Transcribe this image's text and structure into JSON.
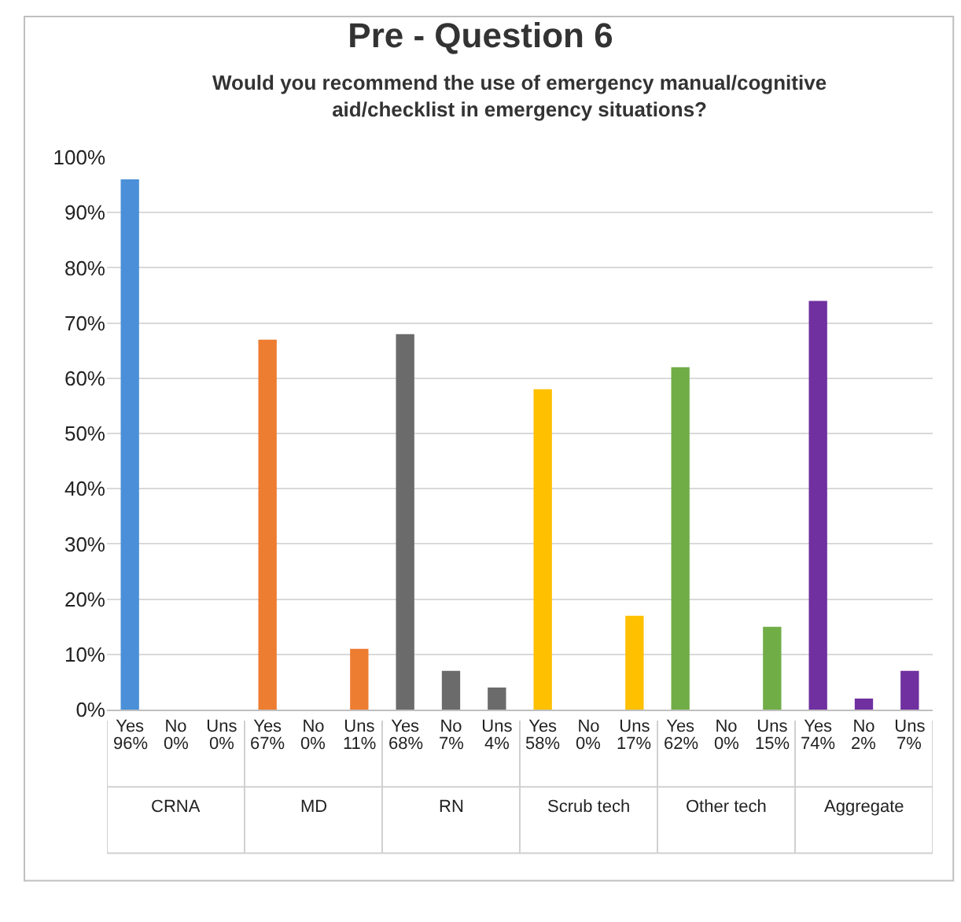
{
  "chart_data": {
    "type": "bar",
    "title": "Pre - Question 6",
    "subtitle": "Would you recommend the use of emergency manual/cognitive aid/checklist in emergency situations?",
    "categories": [
      "Yes",
      "No",
      "Uns",
      "Yes",
      "No",
      "Uns",
      "Yes",
      "No",
      "Uns",
      "Yes",
      "No",
      "Uns",
      "Yes",
      "No",
      "Uns",
      "Yes",
      "No",
      "Uns"
    ],
    "values": [
      96,
      0,
      0,
      67,
      0,
      11,
      68,
      7,
      4,
      58,
      0,
      17,
      62,
      0,
      15,
      74,
      2,
      7
    ],
    "value_labels": [
      "96%",
      "0%",
      "0%",
      "67%",
      "0%",
      "11%",
      "68%",
      "7%",
      "4%",
      "58%",
      "0%",
      "17%",
      "62%",
      "0%",
      "15%",
      "74%",
      "2%",
      "7%"
    ],
    "colors": [
      "#4a8fd8",
      "#4a8fd8",
      "#4a8fd8",
      "#ed7d31",
      "#ed7d31",
      "#ed7d31",
      "#6b6b6b",
      "#6b6b6b",
      "#6b6b6b",
      "#ffc000",
      "#ffc000",
      "#ffc000",
      "#70ad47",
      "#70ad47",
      "#70ad47",
      "#7030a0",
      "#7030a0",
      "#7030a0"
    ],
    "annotations": [
      "CRNA",
      "MD",
      "RN",
      "Scrub tech",
      "Other tech",
      "Aggregate"
    ],
    "ylim": [
      0,
      100
    ],
    "yticks": [
      {
        "value": 0,
        "label": "0%"
      },
      {
        "value": 10,
        "label": "10%"
      },
      {
        "value": 20,
        "label": "20%"
      },
      {
        "value": 30,
        "label": "30%"
      },
      {
        "value": 40,
        "label": "40%"
      },
      {
        "value": 50,
        "label": "50%"
      },
      {
        "value": 60,
        "label": "60%"
      },
      {
        "value": 70,
        "label": "70%"
      },
      {
        "value": 80,
        "label": "80%"
      },
      {
        "value": 90,
        "label": "90%"
      },
      {
        "value": 100,
        "label": "100%"
      }
    ],
    "grid": "y"
  }
}
